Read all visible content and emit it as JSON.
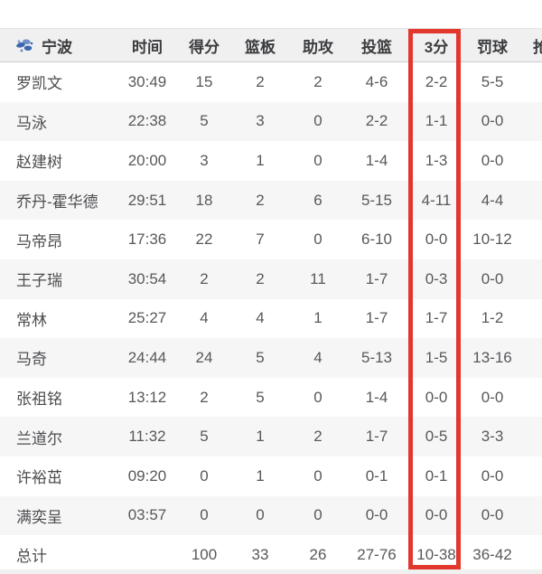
{
  "team": {
    "name": "宁波"
  },
  "columns": [
    "时间",
    "得分",
    "篮板",
    "助攻",
    "投篮",
    "3分",
    "罚球",
    "抢断"
  ],
  "rows": [
    {
      "name": "罗凯文",
      "time": "30:49",
      "pts": "15",
      "reb": "2",
      "ast": "2",
      "fg": "4-6",
      "tp3": "2-2",
      "ft": "5-5"
    },
    {
      "name": "马泳",
      "time": "22:38",
      "pts": "5",
      "reb": "3",
      "ast": "0",
      "fg": "2-2",
      "tp3": "1-1",
      "ft": "0-0"
    },
    {
      "name": "赵建树",
      "time": "20:00",
      "pts": "3",
      "reb": "1",
      "ast": "0",
      "fg": "1-4",
      "tp3": "1-3",
      "ft": "0-0"
    },
    {
      "name": "乔丹-霍华德",
      "time": "29:51",
      "pts": "18",
      "reb": "2",
      "ast": "6",
      "fg": "5-15",
      "tp3": "4-11",
      "ft": "4-4"
    },
    {
      "name": "马帝昂",
      "time": "17:36",
      "pts": "22",
      "reb": "7",
      "ast": "0",
      "fg": "6-10",
      "tp3": "0-0",
      "ft": "10-12"
    },
    {
      "name": "王子瑞",
      "time": "30:54",
      "pts": "2",
      "reb": "2",
      "ast": "11",
      "fg": "1-7",
      "tp3": "0-3",
      "ft": "0-0"
    },
    {
      "name": "常林",
      "time": "25:27",
      "pts": "4",
      "reb": "4",
      "ast": "1",
      "fg": "1-7",
      "tp3": "1-7",
      "ft": "1-2"
    },
    {
      "name": "马奇",
      "time": "24:44",
      "pts": "24",
      "reb": "5",
      "ast": "4",
      "fg": "5-13",
      "tp3": "1-5",
      "ft": "13-16"
    },
    {
      "name": "张祖铭",
      "time": "13:12",
      "pts": "2",
      "reb": "5",
      "ast": "0",
      "fg": "1-4",
      "tp3": "0-0",
      "ft": "0-0"
    },
    {
      "name": "兰道尔",
      "time": "11:32",
      "pts": "5",
      "reb": "1",
      "ast": "2",
      "fg": "1-7",
      "tp3": "0-5",
      "ft": "3-3"
    },
    {
      "name": "许裕茁",
      "time": "09:20",
      "pts": "0",
      "reb": "1",
      "ast": "0",
      "fg": "0-1",
      "tp3": "0-1",
      "ft": "0-0"
    },
    {
      "name": "满奕呈",
      "time": "03:57",
      "pts": "0",
      "reb": "0",
      "ast": "0",
      "fg": "0-0",
      "tp3": "0-0",
      "ft": "0-0"
    },
    {
      "name": "总计",
      "total": true,
      "time": "",
      "pts": "100",
      "reb": "33",
      "ast": "26",
      "fg": "27-76",
      "tp3": "10-38",
      "ft": "36-42"
    }
  ],
  "highlight": {
    "column": "3分",
    "color": "#e1372c"
  },
  "colors": {
    "highlight_red": "#e1372c",
    "logo_blue": "#3a66ad",
    "header_bg": "#f0f0f1",
    "alt_row_bg": "#f6f6f7"
  }
}
